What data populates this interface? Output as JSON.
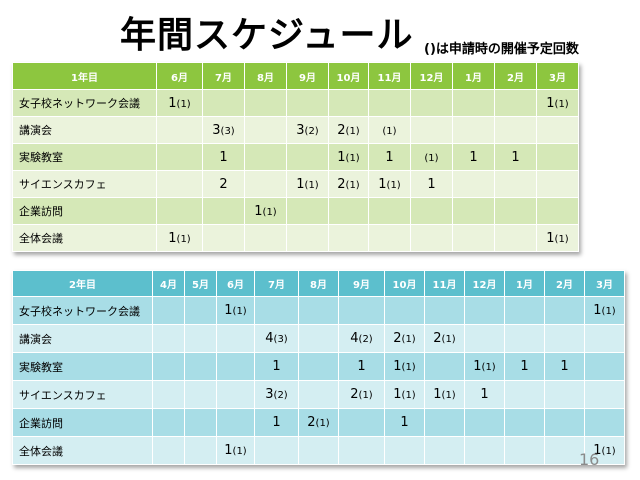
{
  "title": "年間スケジュール",
  "subtitle": "()は申請時の開催予定回数",
  "page_number": "16",
  "year1": {
    "label": "1年目",
    "months": [
      "6月",
      "7月",
      "8月",
      "9月",
      "10月",
      "11月",
      "12月",
      "1月",
      "2月",
      "3月"
    ],
    "rows": [
      {
        "label": "女子校ネットワーク会議",
        "cells": [
          [
            "1",
            "(1)"
          ],
          [
            "",
            ""
          ],
          [
            "",
            ""
          ],
          [
            "",
            ""
          ],
          [
            "",
            ""
          ],
          [
            "",
            ""
          ],
          [
            "",
            ""
          ],
          [
            "",
            ""
          ],
          [
            "",
            ""
          ],
          [
            "1",
            "(1)"
          ]
        ]
      },
      {
        "label": "講演会",
        "cells": [
          [
            "",
            ""
          ],
          [
            "3",
            "(3)"
          ],
          [
            "",
            ""
          ],
          [
            "3",
            "(2)"
          ],
          [
            "2",
            "(1)"
          ],
          [
            "",
            "(1)"
          ],
          [
            "",
            ""
          ],
          [
            "",
            ""
          ],
          [
            "",
            ""
          ],
          [
            "",
            ""
          ]
        ]
      },
      {
        "label": "実験教室",
        "cells": [
          [
            "",
            ""
          ],
          [
            "1",
            ""
          ],
          [
            "",
            ""
          ],
          [
            "",
            ""
          ],
          [
            "1",
            "(1)"
          ],
          [
            "1",
            ""
          ],
          [
            "",
            "(1)"
          ],
          [
            "1",
            ""
          ],
          [
            "1",
            ""
          ],
          [
            "",
            ""
          ]
        ]
      },
      {
        "label": "サイエンスカフェ",
        "cells": [
          [
            "",
            ""
          ],
          [
            "2",
            ""
          ],
          [
            "",
            ""
          ],
          [
            "1",
            "(1)"
          ],
          [
            "2",
            "(1)"
          ],
          [
            "1",
            "(1)"
          ],
          [
            "1",
            ""
          ],
          [
            "",
            ""
          ],
          [
            "",
            ""
          ],
          [
            "",
            ""
          ]
        ]
      },
      {
        "label": "企業訪問",
        "cells": [
          [
            "",
            ""
          ],
          [
            "",
            ""
          ],
          [
            "1",
            "(1)"
          ],
          [
            "",
            ""
          ],
          [
            "",
            ""
          ],
          [
            "",
            ""
          ],
          [
            "",
            ""
          ],
          [
            "",
            ""
          ],
          [
            "",
            ""
          ],
          [
            "",
            ""
          ]
        ]
      },
      {
        "label": "全体会議",
        "cells": [
          [
            "1",
            "(1)"
          ],
          [
            "",
            ""
          ],
          [
            "",
            ""
          ],
          [
            "",
            ""
          ],
          [
            "",
            ""
          ],
          [
            "",
            ""
          ],
          [
            "",
            ""
          ],
          [
            "",
            ""
          ],
          [
            "",
            ""
          ],
          [
            "1",
            "(1)"
          ]
        ]
      }
    ]
  },
  "year2": {
    "label": "2年目",
    "months": [
      "4月",
      "5月",
      "6月",
      "7月",
      "8月",
      "9月",
      "10月",
      "11月",
      "12月",
      "1月",
      "2月",
      "3月"
    ],
    "rows": [
      {
        "label": "女子校ネットワーク会議",
        "cells": [
          [
            "",
            ""
          ],
          [
            "",
            ""
          ],
          [
            "1",
            "(1)"
          ],
          [
            "",
            ""
          ],
          [
            "",
            ""
          ],
          [
            "",
            ""
          ],
          [
            "",
            ""
          ],
          [
            "",
            ""
          ],
          [
            "",
            ""
          ],
          [
            "",
            ""
          ],
          [
            "",
            ""
          ],
          [
            "1",
            "(1)"
          ]
        ]
      },
      {
        "label": "講演会",
        "cells": [
          [
            "",
            ""
          ],
          [
            "",
            ""
          ],
          [
            "",
            ""
          ],
          [
            "4",
            "(3)"
          ],
          [
            "",
            ""
          ],
          [
            "4",
            "(2)"
          ],
          [
            "2",
            "(1)"
          ],
          [
            "2",
            "(1)"
          ],
          [
            "",
            ""
          ],
          [
            "",
            ""
          ],
          [
            "",
            ""
          ],
          [
            "",
            ""
          ]
        ]
      },
      {
        "label": "実験教室",
        "cells": [
          [
            "",
            ""
          ],
          [
            "",
            ""
          ],
          [
            "",
            ""
          ],
          [
            "1",
            ""
          ],
          [
            "",
            ""
          ],
          [
            "1",
            ""
          ],
          [
            "1",
            "(1)"
          ],
          [
            "",
            ""
          ],
          [
            "1",
            "(1)"
          ],
          [
            "1",
            ""
          ],
          [
            "1",
            ""
          ],
          [
            "",
            ""
          ]
        ]
      },
      {
        "label": "サイエンスカフェ",
        "cells": [
          [
            "",
            ""
          ],
          [
            "",
            ""
          ],
          [
            "",
            ""
          ],
          [
            "3",
            "(2)"
          ],
          [
            "",
            ""
          ],
          [
            "2",
            "(1)"
          ],
          [
            "1",
            "(1)"
          ],
          [
            "1",
            "(1)"
          ],
          [
            "1",
            ""
          ],
          [
            "",
            ""
          ],
          [
            "",
            ""
          ],
          [
            "",
            ""
          ]
        ]
      },
      {
        "label": "企業訪問",
        "cells": [
          [
            "",
            ""
          ],
          [
            "",
            ""
          ],
          [
            "",
            ""
          ],
          [
            "1",
            ""
          ],
          [
            "2",
            "(1)"
          ],
          [
            "",
            ""
          ],
          [
            "1",
            ""
          ],
          [
            "",
            ""
          ],
          [
            "",
            ""
          ],
          [
            "",
            ""
          ],
          [
            "",
            ""
          ],
          [
            "",
            ""
          ]
        ]
      },
      {
        "label": "全体会議",
        "cells": [
          [
            "",
            ""
          ],
          [
            "",
            ""
          ],
          [
            "1",
            "(1)"
          ],
          [
            "",
            ""
          ],
          [
            "",
            ""
          ],
          [
            "",
            ""
          ],
          [
            "",
            ""
          ],
          [
            "",
            ""
          ],
          [
            "",
            ""
          ],
          [
            "",
            ""
          ],
          [
            "",
            ""
          ],
          [
            "1",
            "(1)"
          ]
        ]
      }
    ]
  }
}
